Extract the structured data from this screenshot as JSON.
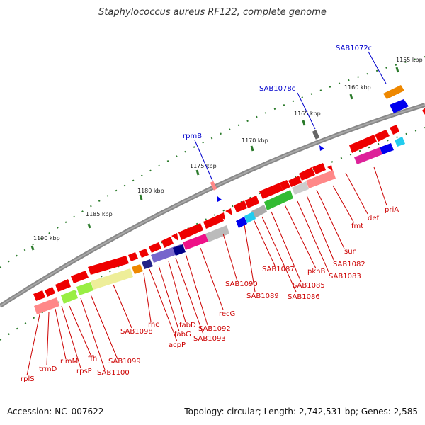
{
  "title": "Staphylococcus aureus RF122, complete genome",
  "footer": {
    "accession": "Accession: NC_007622",
    "summary": "Topology: circular; Length: 2,742,531 bp; Genes: 2,585"
  },
  "colors": {
    "backbone": "#777777",
    "gene_red": "#ee0000",
    "label_red": "#cc0000",
    "label_blue": "#0000cc",
    "tick_green": "#2a7a2a"
  },
  "ticks": [
    {
      "label": "1190 kbp"
    },
    {
      "label": "1185 kbp"
    },
    {
      "label": "1180 kbp"
    },
    {
      "label": "1175 kbp"
    },
    {
      "label": "1170 kbp"
    },
    {
      "label": "1165 kbp"
    },
    {
      "label": "1160 kbp"
    },
    {
      "label": "1155 kbp"
    }
  ],
  "rna_labels": [
    "SAB1072c",
    "SAB1078c",
    "rpmB"
  ],
  "gene_labels": [
    "priA",
    "def",
    "fmt",
    "sun",
    "SAB1082",
    "SAB1083",
    "pknB",
    "SAB1085",
    "SAB1086",
    "SAB1087",
    "SAB1089",
    "SAB1090",
    "recG",
    "SAB1092",
    "SAB1093",
    "fabD",
    "fabG",
    "acpP",
    "rnc",
    "SAB1098",
    "SAB1099",
    "SAB1100",
    "ffh",
    "rpsP",
    "rimM",
    "trmD",
    "rplS"
  ]
}
